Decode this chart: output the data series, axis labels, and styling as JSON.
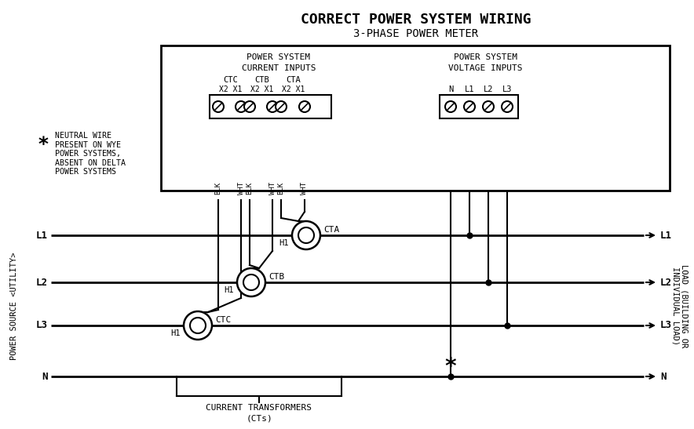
{
  "title": "CORRECT POWER SYSTEM WIRING",
  "subtitle": "3-PHASE POWER METER",
  "bg_color": "#ffffff",
  "line_color": "#000000",
  "current_inputs_label_1": "POWER SYSTEM",
  "current_inputs_label_2": "CURRENT INPUTS",
  "voltage_inputs_label_1": "POWER SYSTEM",
  "voltage_inputs_label_2": "VOLTAGE INPUTS",
  "ct_labels_top": [
    "CTC",
    "CTB",
    "CTA"
  ],
  "ct_sub_labels": [
    "X2 X1",
    "X2 X1",
    "X2 X1"
  ],
  "volt_labels": [
    "N",
    "L1",
    "L2",
    "L3"
  ],
  "wire_label_pairs": [
    [
      "BLK",
      "WHT"
    ],
    [
      "BLK",
      "WHT"
    ],
    [
      "BLK",
      "WHT"
    ]
  ],
  "left_label": "POWER SOURCE <UTILITY>",
  "right_label_1": "LOAD (BUILDING OR",
  "right_label_2": "INDIVIDUAL LOAD)",
  "line_labels_left": [
    "L1",
    "L2",
    "L3",
    "N"
  ],
  "line_labels_right": [
    "L1",
    "L2",
    "L3",
    "N"
  ],
  "ct_ring_labels": [
    "CTA",
    "CTB",
    "CTC"
  ],
  "h1_labels": [
    "H1",
    "H1",
    "H1"
  ],
  "brace_label_1": "CURRENT TRANSFORMERS",
  "brace_label_2": "(CTs)",
  "asterisk_note_lines": [
    "NEUTRAL WIRE",
    "PRESENT ON WYE",
    "POWER SYSTEMS,",
    "ABSENT ON DELTA",
    "POWER SYSTEMS"
  ]
}
